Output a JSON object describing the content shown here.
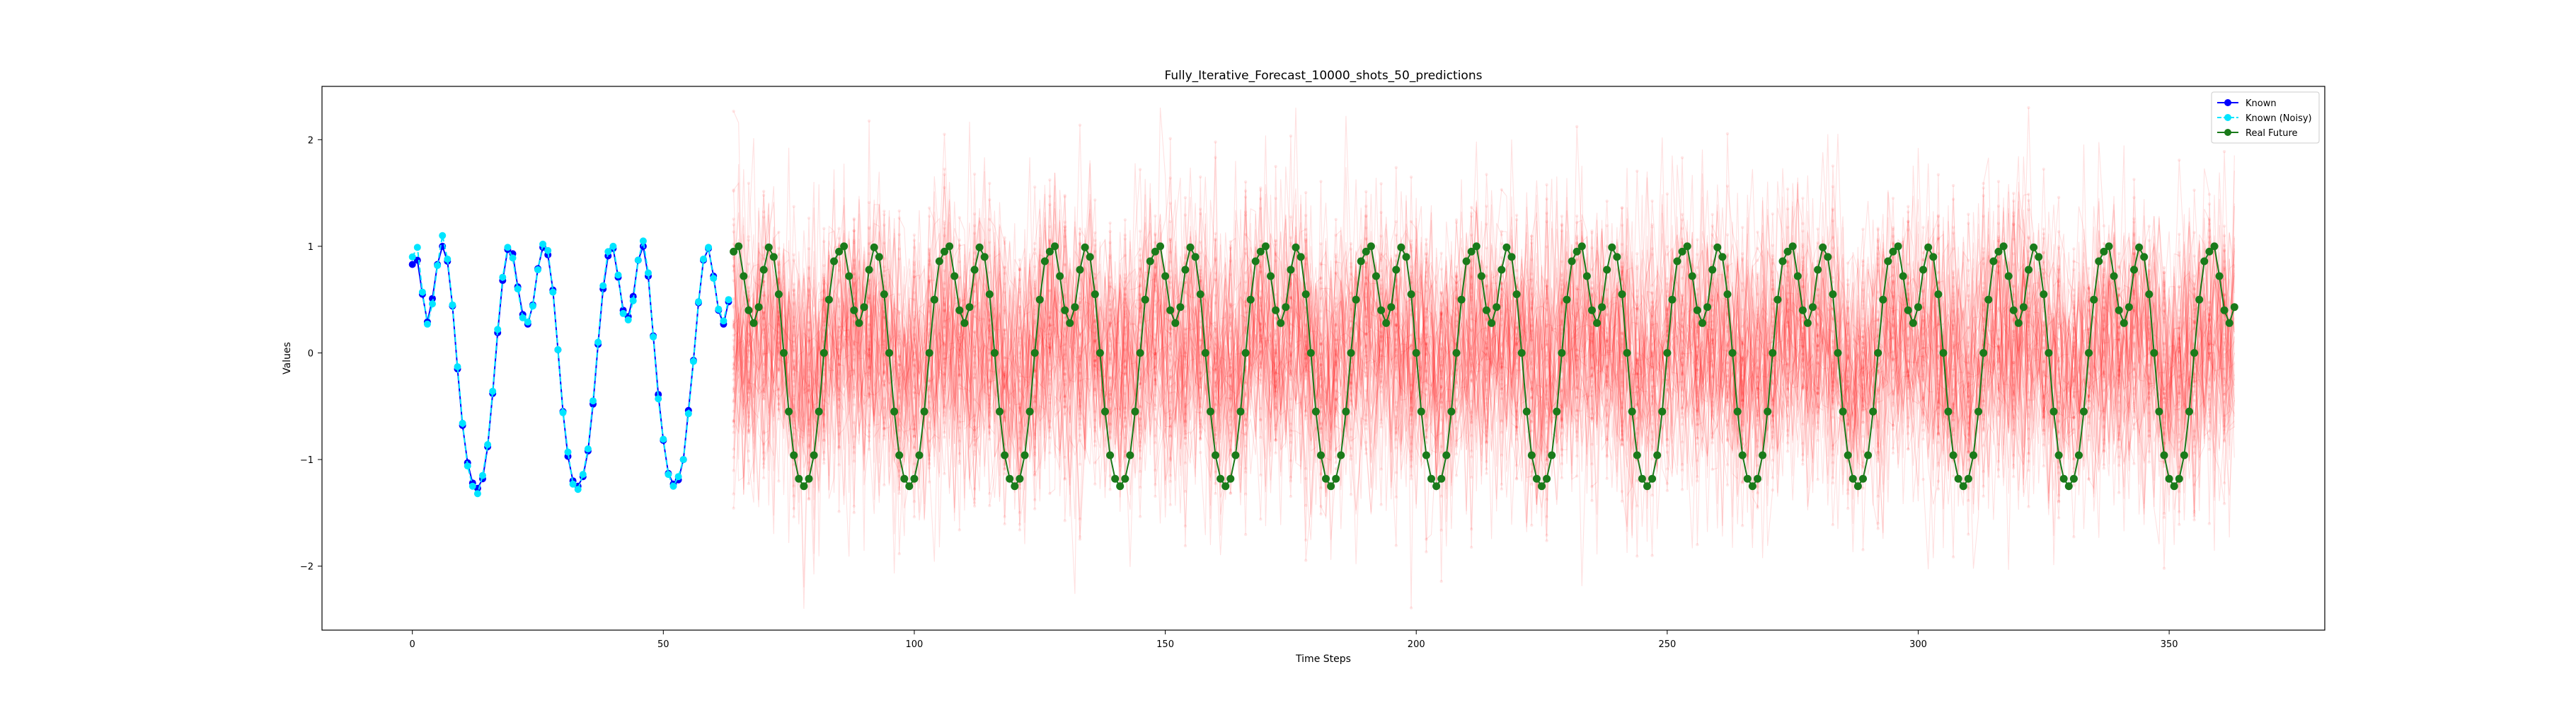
{
  "chart_data": {
    "type": "line",
    "title": "Fully_Iterative_Forecast_10000_shots_50_predictions",
    "xlabel": "Time Steps",
    "ylabel": "Values",
    "xlim": [
      -18,
      381
    ],
    "ylim": [
      -2.6,
      2.5
    ],
    "xticks": [
      0,
      50,
      100,
      150,
      200,
      250,
      300,
      350
    ],
    "yticks": [
      -2,
      -1,
      0,
      1,
      2
    ],
    "grid": false,
    "legend_position": "top-right",
    "series": [
      {
        "name": "Known",
        "color": "#0000ff",
        "marker": "circle",
        "x_range": [
          0,
          63
        ],
        "values": [
          0.83,
          0.87,
          0.55,
          0.29,
          0.51,
          0.83,
          1.0,
          0.86,
          0.44,
          -0.15,
          -0.68,
          -1.03,
          -1.22,
          -1.27,
          -1.18,
          -0.88,
          -0.38,
          0.19,
          0.68,
          0.97,
          0.93,
          0.62,
          0.36,
          0.27,
          0.45,
          0.79,
          0.99,
          0.92,
          0.59,
          0.03,
          -0.55,
          -0.97,
          -1.2,
          -1.25,
          -1.16,
          -0.92,
          -0.48,
          0.08,
          0.6,
          0.91,
          0.98,
          0.71,
          0.4,
          0.34,
          0.53,
          0.87,
          1.0,
          0.72,
          0.16,
          -0.39,
          -0.82,
          -1.13,
          -1.23,
          -1.19,
          -1.0,
          -0.54,
          -0.07,
          0.47,
          0.87,
          0.98,
          0.72,
          0.4,
          0.27,
          0.48
        ]
      },
      {
        "name": "Known (Noisy)",
        "color": "#00e5ff",
        "marker": "circle",
        "line_style": "dashed",
        "x_range": [
          0,
          63
        ],
        "values": [
          0.9,
          0.99,
          0.57,
          0.27,
          0.46,
          0.82,
          1.1,
          0.88,
          0.45,
          -0.13,
          -0.66,
          -1.06,
          -1.25,
          -1.32,
          -1.15,
          -0.86,
          -0.36,
          0.22,
          0.71,
          0.99,
          0.89,
          0.6,
          0.33,
          0.29,
          0.44,
          0.78,
          1.02,
          0.96,
          0.57,
          0.03,
          -0.56,
          -0.93,
          -1.23,
          -1.28,
          -1.14,
          -0.9,
          -0.45,
          0.1,
          0.63,
          0.95,
          1.0,
          0.73,
          0.37,
          0.31,
          0.49,
          0.87,
          1.05,
          0.75,
          0.15,
          -0.43,
          -0.81,
          -1.14,
          -1.25,
          -1.16,
          -1.0,
          -0.57,
          -0.08,
          0.48,
          0.88,
          0.99,
          0.7,
          0.41,
          0.3,
          0.5
        ]
      },
      {
        "name": "Real Future",
        "color": "#1a7a1a",
        "marker": "circle",
        "x_range": [
          64,
          363
        ],
        "pattern_period": 21,
        "pattern_values": [
          0.95,
          1.0,
          0.72,
          0.4,
          0.28,
          0.43,
          0.78,
          0.99,
          0.9,
          0.55,
          0.0,
          -0.55,
          -0.96,
          -1.18,
          -1.25,
          -1.18,
          -0.96,
          -0.55,
          0.0,
          0.5,
          0.86
        ]
      },
      {
        "name": "Predictions",
        "color": "#ff0000",
        "opacity": 0.12,
        "count": 50,
        "x_range": [
          64,
          363
        ],
        "center_offset": 0.15,
        "spread": 0.65,
        "min": -2.4,
        "max": 2.3
      }
    ],
    "legend_entries": [
      "Known",
      "Known (Noisy)",
      "Real Future"
    ]
  }
}
